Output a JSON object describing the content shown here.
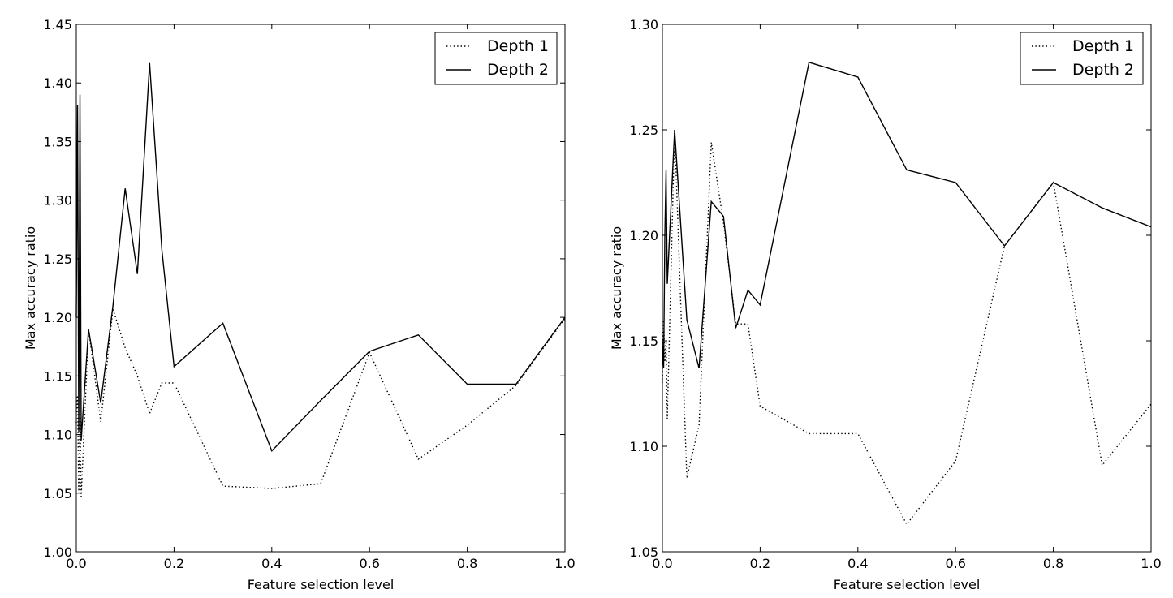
{
  "chart_data": [
    {
      "type": "line",
      "xlabel": "Feature selection level",
      "ylabel": "Max accuracy ratio",
      "xlim": [
        0.0,
        1.0
      ],
      "ylim": [
        1.0,
        1.45
      ],
      "xticks": [
        0.0,
        0.2,
        0.4,
        0.6,
        0.8,
        1.0
      ],
      "xtick_labels": [
        "0.0",
        "0.2",
        "0.4",
        "0.6",
        "0.8",
        "1.0"
      ],
      "yticks": [
        1.0,
        1.05,
        1.1,
        1.15,
        1.2,
        1.25,
        1.3,
        1.35,
        1.4,
        1.45
      ],
      "ytick_labels": [
        "1.00",
        "1.05",
        "1.10",
        "1.15",
        "1.20",
        "1.25",
        "1.30",
        "1.35",
        "1.40",
        "1.45"
      ],
      "grid": false,
      "legend": "top-right",
      "series": [
        {
          "name": "Depth 1",
          "style": "dotted",
          "x": [
            0.0,
            0.0025,
            0.005,
            0.0075,
            0.01,
            0.025,
            0.05,
            0.075,
            0.1,
            0.125,
            0.15,
            0.175,
            0.2,
            0.3,
            0.4,
            0.5,
            0.6,
            0.7,
            0.8,
            0.9,
            1.0
          ],
          "y": [
            1.11,
            1.135,
            1.05,
            1.12,
            1.047,
            1.19,
            1.111,
            1.207,
            1.174,
            1.15,
            1.118,
            1.144,
            1.144,
            1.056,
            1.054,
            1.058,
            1.17,
            1.079,
            1.108,
            1.142,
            1.199
          ]
        },
        {
          "name": "Depth 2",
          "style": "solid",
          "x": [
            0.0,
            0.0025,
            0.005,
            0.0075,
            0.01,
            0.025,
            0.05,
            0.075,
            0.1,
            0.125,
            0.15,
            0.175,
            0.2,
            0.3,
            0.4,
            0.5,
            0.6,
            0.7,
            0.8,
            0.9,
            1.0
          ],
          "y": [
            1.2,
            1.381,
            1.102,
            1.39,
            1.095,
            1.19,
            1.127,
            1.21,
            1.31,
            1.237,
            1.417,
            1.258,
            1.158,
            1.195,
            1.086,
            1.129,
            1.171,
            1.185,
            1.143,
            1.143,
            1.2
          ]
        }
      ]
    },
    {
      "type": "line",
      "xlabel": "Feature selection level",
      "ylabel": "Max accuracy ratio",
      "xlim": [
        0.0,
        1.0
      ],
      "ylim": [
        1.05,
        1.3
      ],
      "xticks": [
        0.0,
        0.2,
        0.4,
        0.6,
        0.8,
        1.0
      ],
      "xtick_labels": [
        "0.0",
        "0.2",
        "0.4",
        "0.6",
        "0.8",
        "1.0"
      ],
      "yticks": [
        1.05,
        1.1,
        1.15,
        1.2,
        1.25,
        1.3
      ],
      "ytick_labels": [
        "1.05",
        "1.10",
        "1.15",
        "1.20",
        "1.25",
        "1.30"
      ],
      "grid": false,
      "legend": "top-right",
      "series": [
        {
          "name": "Depth 1",
          "style": "dotted",
          "x": [
            0.0,
            0.0025,
            0.005,
            0.0075,
            0.01,
            0.025,
            0.05,
            0.075,
            0.1,
            0.125,
            0.15,
            0.175,
            0.2,
            0.3,
            0.4,
            0.5,
            0.6,
            0.7,
            0.8,
            0.9,
            1.0
          ],
          "y": [
            1.13,
            1.16,
            1.14,
            1.15,
            1.113,
            1.25,
            1.085,
            1.11,
            1.244,
            1.206,
            1.158,
            1.158,
            1.119,
            1.106,
            1.106,
            1.063,
            1.093,
            1.195,
            1.225,
            1.091,
            1.12
          ]
        },
        {
          "name": "Depth 2",
          "style": "solid",
          "x": [
            0.0,
            0.0025,
            0.005,
            0.0075,
            0.01,
            0.025,
            0.05,
            0.075,
            0.1,
            0.125,
            0.15,
            0.175,
            0.2,
            0.3,
            0.4,
            0.5,
            0.6,
            0.7,
            0.8,
            0.9,
            1.0
          ],
          "y": [
            1.15,
            1.137,
            1.2,
            1.231,
            1.177,
            1.25,
            1.16,
            1.137,
            1.216,
            1.209,
            1.156,
            1.174,
            1.167,
            1.282,
            1.275,
            1.231,
            1.225,
            1.195,
            1.225,
            1.213,
            1.204
          ]
        }
      ]
    }
  ]
}
